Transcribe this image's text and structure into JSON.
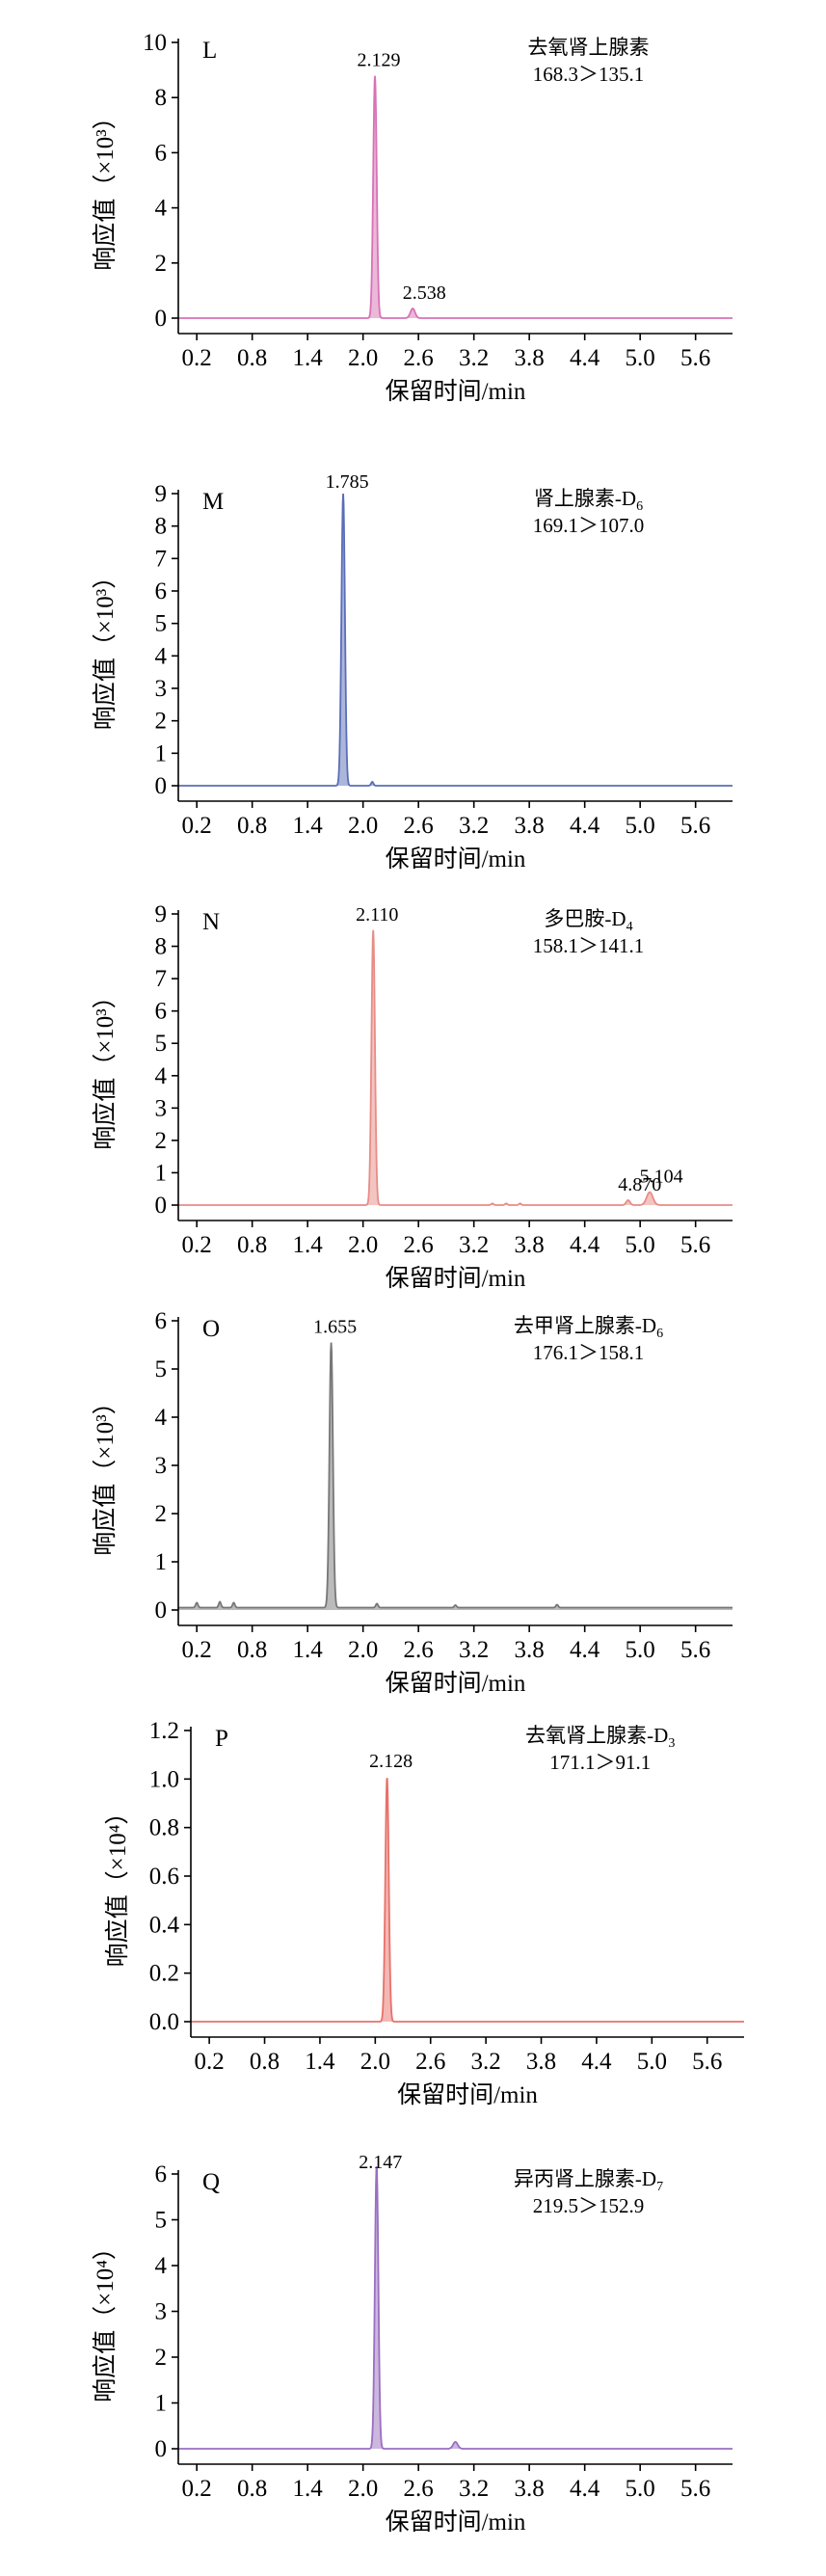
{
  "chart_data": [
    {
      "type": "line",
      "panel_label": "L",
      "compound": "去氧肾上腺素",
      "transition": "168.3＞135.1",
      "ylabel": "响应值（×10³）",
      "xlabel": "保留时间/min",
      "ylim": [
        0,
        10
      ],
      "yticks": [
        "0",
        "2",
        "4",
        "6",
        "8",
        "10"
      ],
      "xlim": [
        0,
        6.0
      ],
      "xticks": [
        "0.2",
        "0.8",
        "1.4",
        "2.0",
        "2.6",
        "3.2",
        "3.8",
        "4.4",
        "5.0",
        "5.6"
      ],
      "color": "#d872b5",
      "peaks": [
        {
          "rt": 2.129,
          "label": "2.129",
          "height": 8.8,
          "width": 0.045
        },
        {
          "rt": 2.538,
          "label": "2.538",
          "height": 0.35,
          "width": 0.06
        }
      ],
      "minor_peaks": []
    },
    {
      "type": "line",
      "panel_label": "M",
      "compound": "肾上腺素-D",
      "compound_sub": "6",
      "transition": "169.1＞107.0",
      "ylabel": "响应值（×10³）",
      "xlabel": "保留时间/min",
      "ylim": [
        0,
        9
      ],
      "yticks": [
        "0",
        "1",
        "2",
        "3",
        "4",
        "5",
        "6",
        "7",
        "8",
        "9"
      ],
      "xlim": [
        0,
        6.0
      ],
      "xticks": [
        "0.2",
        "0.8",
        "1.4",
        "2.0",
        "2.6",
        "3.2",
        "3.8",
        "4.4",
        "5.0",
        "5.6"
      ],
      "color": "#5a6eb8",
      "peaks": [
        {
          "rt": 1.785,
          "label": "1.785",
          "height": 9.0,
          "width": 0.045
        }
      ],
      "minor_peaks": [
        {
          "rt": 2.1,
          "height": 0.12,
          "width": 0.03
        }
      ]
    },
    {
      "type": "line",
      "panel_label": "N",
      "compound": "多巴胺-D",
      "compound_sub": "4",
      "transition": "158.1＞141.1",
      "ylabel": "响应值（×10³）",
      "xlabel": "保留时间/min",
      "ylim": [
        0,
        9
      ],
      "yticks": [
        "0",
        "1",
        "2",
        "3",
        "4",
        "5",
        "6",
        "7",
        "8",
        "9"
      ],
      "xlim": [
        0,
        6.0
      ],
      "xticks": [
        "0.2",
        "0.8",
        "1.4",
        "2.0",
        "2.6",
        "3.2",
        "3.8",
        "4.4",
        "5.0",
        "5.6"
      ],
      "color": "#e88c86",
      "peaks": [
        {
          "rt": 2.11,
          "label": "2.110",
          "height": 8.5,
          "width": 0.045
        },
        {
          "rt": 4.87,
          "label": "4.870",
          "height": 0.15,
          "width": 0.05
        },
        {
          "rt": 5.104,
          "label": "5.104",
          "height": 0.4,
          "width": 0.08
        }
      ],
      "minor_peaks": [
        {
          "rt": 3.4,
          "height": 0.05,
          "width": 0.03
        },
        {
          "rt": 3.55,
          "height": 0.05,
          "width": 0.03
        },
        {
          "rt": 3.7,
          "height": 0.05,
          "width": 0.03
        }
      ]
    },
    {
      "type": "line",
      "panel_label": "O",
      "compound": "去甲肾上腺素-D",
      "compound_sub": "6",
      "transition": "176.1＞158.1",
      "ylabel": "响应值（×10³）",
      "xlabel": "保留时间/min",
      "ylim": [
        0,
        6
      ],
      "yticks": [
        "0",
        "1",
        "2",
        "3",
        "4",
        "5",
        "6"
      ],
      "xlim": [
        0,
        6.0
      ],
      "xticks": [
        "0.2",
        "0.8",
        "1.4",
        "2.0",
        "2.6",
        "3.2",
        "3.8",
        "4.4",
        "5.0",
        "5.6"
      ],
      "color": "#777777",
      "baseline": 0.05,
      "peaks": [
        {
          "rt": 1.655,
          "label": "1.655",
          "height": 5.5,
          "width": 0.045
        }
      ],
      "minor_peaks": [
        {
          "rt": 0.2,
          "height": 0.1,
          "width": 0.03
        },
        {
          "rt": 0.45,
          "height": 0.12,
          "width": 0.03
        },
        {
          "rt": 0.6,
          "height": 0.1,
          "width": 0.03
        },
        {
          "rt": 2.15,
          "height": 0.08,
          "width": 0.03
        },
        {
          "rt": 3.0,
          "height": 0.05,
          "width": 0.03
        },
        {
          "rt": 4.1,
          "height": 0.06,
          "width": 0.03
        }
      ]
    },
    {
      "type": "line",
      "panel_label": "P",
      "compound": "去氧肾上腺素-D",
      "compound_sub": "3",
      "transition": "171.1＞91.1",
      "ylabel": "响应值（×10⁴）",
      "xlabel": "保留时间/min",
      "ylim": [
        0,
        1.2
      ],
      "yticks": [
        "0.0",
        "0.2",
        "0.4",
        "0.6",
        "0.8",
        "1.0",
        "1.2"
      ],
      "xlim": [
        0,
        6.0
      ],
      "xticks": [
        "0.2",
        "0.8",
        "1.4",
        "2.0",
        "2.6",
        "3.2",
        "3.8",
        "4.4",
        "5.0",
        "5.6"
      ],
      "color": "#e8716a",
      "peaks": [
        {
          "rt": 2.128,
          "label": "2.128",
          "height": 1.01,
          "width": 0.045
        }
      ],
      "minor_peaks": []
    },
    {
      "type": "line",
      "panel_label": "Q",
      "compound": "异丙肾上腺素-D",
      "compound_sub": "7",
      "transition": "219.5＞152.9",
      "ylabel": "响应值（×10⁴）",
      "xlabel": "保留时间/min",
      "ylim": [
        0,
        6
      ],
      "yticks": [
        "0",
        "1",
        "2",
        "3",
        "4",
        "5",
        "6"
      ],
      "xlim": [
        0,
        6.0
      ],
      "xticks": [
        "0.2",
        "0.8",
        "1.4",
        "2.0",
        "2.6",
        "3.2",
        "3.8",
        "4.4",
        "5.0",
        "5.6"
      ],
      "color": "#9a6fc0",
      "peaks": [
        {
          "rt": 2.147,
          "label": "2.147",
          "height": 6.2,
          "width": 0.045
        },
        {
          "rt": 3.0,
          "height": 0.15,
          "width": 0.06
        }
      ],
      "minor_peaks": []
    }
  ]
}
